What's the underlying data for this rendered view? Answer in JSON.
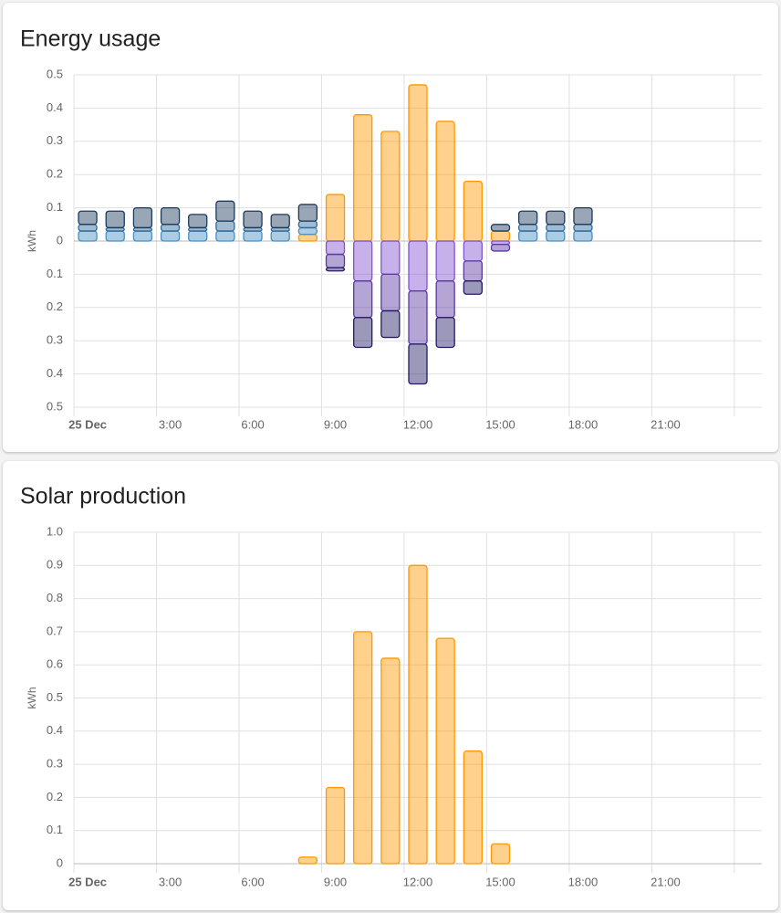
{
  "chart_data": [
    {
      "type": "bar",
      "stacked": true,
      "title": "Energy usage",
      "y_label": "kWh",
      "categories": [
        "25 Dec",
        null,
        null,
        "3:00",
        null,
        null,
        "6:00",
        null,
        null,
        "9:00",
        null,
        null,
        "12:00",
        null,
        null,
        "15:00",
        null,
        null,
        "18:00",
        null,
        null,
        "21:00",
        null,
        null
      ],
      "ylim": [
        -0.5,
        0.5
      ],
      "yticks": [
        0.5,
        0.4,
        0.3,
        0.2,
        0.1,
        0,
        {
          "value": -0.1,
          "label": "0.1"
        },
        {
          "value": -0.2,
          "label": "0.2"
        },
        {
          "value": -0.3,
          "label": "0.3"
        },
        {
          "value": -0.4,
          "label": "0.4"
        },
        {
          "value": -0.5,
          "label": "0.5"
        }
      ],
      "grid": true,
      "series": [
        {
          "color": "#ff9800",
          "values": [
            null,
            null,
            null,
            null,
            null,
            null,
            null,
            null,
            0.02,
            0.14,
            0.38,
            0.33,
            0.47,
            0.36,
            0.18,
            0.03,
            null,
            null,
            null,
            null,
            null,
            null,
            null,
            null
          ]
        },
        {
          "color": "#488fc2",
          "values": [
            0.03,
            0.03,
            0.03,
            0.03,
            0.03,
            0.03,
            0.03,
            0.03,
            0.02,
            null,
            null,
            null,
            null,
            null,
            null,
            null,
            0.03,
            0.03,
            0.03,
            null,
            null,
            null,
            null,
            null
          ]
        },
        {
          "color": "#2f6a9a",
          "values": [
            0.02,
            0.01,
            0.01,
            0.02,
            0.01,
            0.03,
            0.01,
            0.01,
            0.02,
            null,
            null,
            null,
            null,
            null,
            null,
            null,
            0.02,
            0.02,
            0.02,
            null,
            null,
            null,
            null,
            null
          ]
        },
        {
          "color": "#1b3a5c",
          "values": [
            0.04,
            0.05,
            0.06,
            0.05,
            0.04,
            0.06,
            0.05,
            0.04,
            0.05,
            null,
            null,
            null,
            null,
            null,
            null,
            0.02,
            0.04,
            0.04,
            0.05,
            null,
            null,
            null,
            null,
            null
          ]
        },
        {
          "color": "#8353d1",
          "values": [
            null,
            null,
            null,
            null,
            null,
            null,
            null,
            null,
            null,
            -0.04,
            -0.12,
            -0.1,
            -0.15,
            -0.12,
            -0.06,
            -0.01,
            null,
            null,
            null,
            null,
            null,
            null,
            null,
            null
          ]
        },
        {
          "color": "#5a38a0",
          "values": [
            null,
            null,
            null,
            null,
            null,
            null,
            null,
            null,
            null,
            -0.04,
            -0.11,
            -0.11,
            -0.16,
            -0.11,
            -0.06,
            -0.02,
            null,
            null,
            null,
            null,
            null,
            null,
            null,
            null
          ]
        },
        {
          "color": "#241a66",
          "values": [
            null,
            null,
            null,
            null,
            null,
            null,
            null,
            null,
            null,
            -0.01,
            -0.09,
            -0.08,
            -0.12,
            -0.09,
            -0.04,
            null,
            null,
            null,
            null,
            null,
            null,
            null,
            null,
            null
          ]
        }
      ]
    },
    {
      "type": "bar",
      "title": "Solar production",
      "y_label": "kWh",
      "categories": [
        "25 Dec",
        null,
        null,
        "3:00",
        null,
        null,
        "6:00",
        null,
        null,
        "9:00",
        null,
        null,
        "12:00",
        null,
        null,
        "15:00",
        null,
        null,
        "18:00",
        null,
        null,
        "21:00",
        null,
        null
      ],
      "ylim": [
        0,
        1
      ],
      "yticks": [
        0,
        0.1,
        0.2,
        0.3,
        0.4,
        0.5,
        0.6,
        0.7,
        0.8,
        0.9,
        {
          "value": 1,
          "label": "1.0"
        }
      ],
      "grid": true,
      "series": [
        {
          "color": "#ff9800",
          "values": [
            null,
            null,
            null,
            null,
            null,
            null,
            null,
            null,
            0.02,
            0.23,
            0.7,
            0.62,
            0.9,
            0.68,
            0.34,
            0.06,
            null,
            null,
            null,
            null,
            null,
            null,
            null,
            null
          ]
        }
      ]
    }
  ]
}
